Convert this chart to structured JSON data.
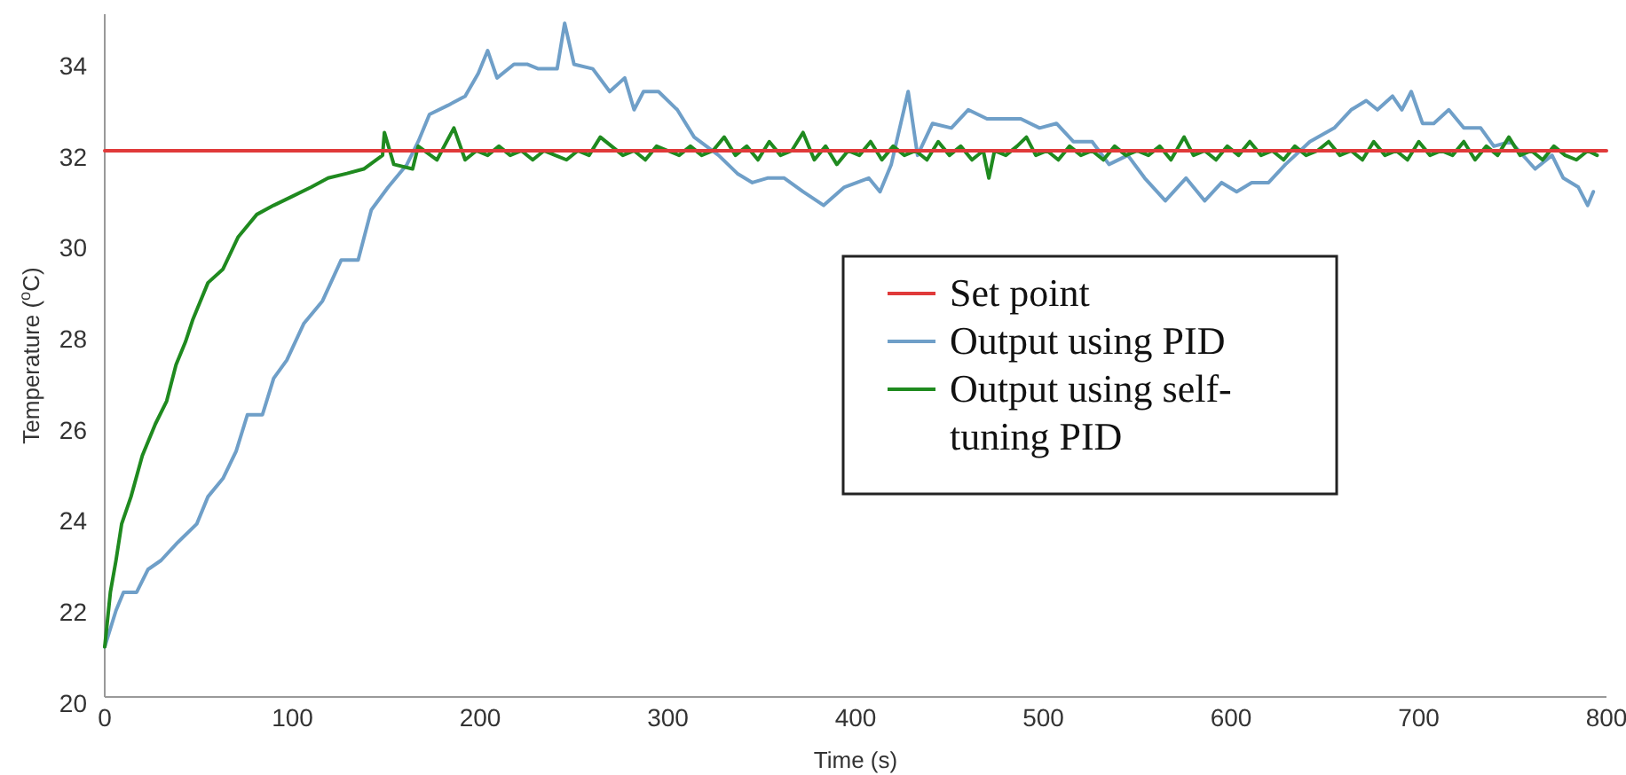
{
  "chart_data": {
    "type": "line",
    "xlabel": "Time (s)",
    "ylabel": "Temperature ($^{o}$C)",
    "xlim": [
      0,
      800
    ],
    "ylim": [
      20,
      35
    ],
    "xticks": [
      0,
      100,
      200,
      300,
      400,
      500,
      600,
      700,
      800
    ],
    "yticks": [
      20,
      22,
      24,
      26,
      28,
      30,
      32,
      34
    ],
    "grid": false,
    "legend": "right",
    "marker": "none",
    "line_style": "solid",
    "series": [
      {
        "name": "Set point",
        "color": "#e03a3a",
        "x": [
          0,
          800
        ],
        "values": [
          32,
          32
        ]
      },
      {
        "name": "Output using PID",
        "color": "#6f9fc8",
        "x": [
          0,
          6,
          10,
          17,
          23,
          30,
          39,
          49,
          55,
          63,
          70,
          76,
          84,
          90,
          97,
          106,
          116,
          126,
          135,
          142,
          151,
          161,
          167,
          173,
          183,
          192,
          199,
          204,
          209,
          218,
          225,
          231,
          241,
          245,
          250,
          260,
          269,
          277,
          282,
          287,
          295,
          305,
          314,
          327,
          337,
          345,
          353,
          362,
          372,
          383,
          394,
          407,
          413,
          419,
          428,
          433,
          441,
          451,
          460,
          470,
          479,
          488,
          498,
          507,
          516,
          526,
          535,
          545,
          554,
          565,
          576,
          586,
          595,
          603,
          611,
          620,
          629,
          642,
          655,
          664,
          672,
          678,
          686,
          691,
          696,
          702,
          708,
          716,
          724,
          733,
          740,
          749,
          762,
          771,
          777,
          785,
          790,
          793
        ],
        "values": [
          21.1,
          21.9,
          22.3,
          22.3,
          22.8,
          23.0,
          23.4,
          23.8,
          24.4,
          24.8,
          25.4,
          26.2,
          26.2,
          27.0,
          27.4,
          28.2,
          28.7,
          29.6,
          29.6,
          30.7,
          31.2,
          31.7,
          32.2,
          32.8,
          33.0,
          33.2,
          33.7,
          34.2,
          33.6,
          33.9,
          33.9,
          33.8,
          33.8,
          34.8,
          33.9,
          33.8,
          33.3,
          33.6,
          32.9,
          33.3,
          33.3,
          32.9,
          32.3,
          31.9,
          31.5,
          31.3,
          31.4,
          31.4,
          31.1,
          30.8,
          31.2,
          31.4,
          31.1,
          31.7,
          33.3,
          31.9,
          32.6,
          32.5,
          32.9,
          32.7,
          32.7,
          32.7,
          32.5,
          32.6,
          32.2,
          32.2,
          31.7,
          31.9,
          31.4,
          30.9,
          31.4,
          30.9,
          31.3,
          31.1,
          31.3,
          31.3,
          31.7,
          32.2,
          32.5,
          32.9,
          33.1,
          32.9,
          33.2,
          32.9,
          33.3,
          32.6,
          32.6,
          32.9,
          32.5,
          32.5,
          32.1,
          32.2,
          31.6,
          31.9,
          31.4,
          31.2,
          30.8,
          31.1
        ]
      },
      {
        "name": "Output using self-tuning PID",
        "color": "#1f8a1f",
        "x": [
          0,
          3,
          6,
          9,
          14,
          20,
          27,
          33,
          38,
          43,
          47,
          55,
          63,
          71,
          81,
          90,
          100,
          110,
          119,
          129,
          138,
          148,
          149,
          154,
          164,
          167,
          177,
          186,
          192,
          198,
          204,
          210,
          216,
          222,
          228,
          234,
          240,
          246,
          252,
          258,
          264,
          270,
          276,
          282,
          288,
          294,
          300,
          306,
          312,
          318,
          324,
          330,
          336,
          342,
          348,
          354,
          360,
          366,
          372,
          378,
          384,
          390,
          396,
          402,
          408,
          414,
          420,
          426,
          432,
          438,
          444,
          450,
          456,
          462,
          468,
          471,
          474,
          480,
          486,
          491,
          496,
          502,
          508,
          514,
          520,
          526,
          532,
          538,
          544,
          550,
          556,
          562,
          568,
          575,
          580,
          586,
          592,
          598,
          604,
          610,
          616,
          622,
          628,
          634,
          640,
          646,
          652,
          658,
          664,
          670,
          676,
          682,
          688,
          694,
          700,
          706,
          712,
          718,
          724,
          730,
          736,
          742,
          748,
          754,
          760,
          766,
          772,
          778,
          784,
          790,
          795
        ],
        "values": [
          21.1,
          22.3,
          23.0,
          23.8,
          24.4,
          25.3,
          26.0,
          26.5,
          27.3,
          27.8,
          28.3,
          29.1,
          29.4,
          30.1,
          30.6,
          30.8,
          31.0,
          31.2,
          31.4,
          31.5,
          31.6,
          31.9,
          32.4,
          31.7,
          31.6,
          32.1,
          31.8,
          32.5,
          31.8,
          32.0,
          31.9,
          32.1,
          31.9,
          32.0,
          31.8,
          32.0,
          31.9,
          31.8,
          32.0,
          31.9,
          32.3,
          32.1,
          31.9,
          32.0,
          31.8,
          32.1,
          32.0,
          31.9,
          32.1,
          31.9,
          32.0,
          32.3,
          31.9,
          32.1,
          31.8,
          32.2,
          31.9,
          32.0,
          32.4,
          31.8,
          32.1,
          31.7,
          32.0,
          31.9,
          32.2,
          31.8,
          32.1,
          31.9,
          32.0,
          31.8,
          32.2,
          31.9,
          32.1,
          31.8,
          32.0,
          31.4,
          32.0,
          31.9,
          32.1,
          32.3,
          31.9,
          32.0,
          31.8,
          32.1,
          31.9,
          32.0,
          31.8,
          32.1,
          31.9,
          32.0,
          31.9,
          32.1,
          31.8,
          32.3,
          31.9,
          32.0,
          31.8,
          32.1,
          31.9,
          32.2,
          31.9,
          32.0,
          31.8,
          32.1,
          31.9,
          32.0,
          32.2,
          31.9,
          32.0,
          31.8,
          32.2,
          31.9,
          32.0,
          31.8,
          32.2,
          31.9,
          32.0,
          31.9,
          32.2,
          31.8,
          32.1,
          31.9,
          32.3,
          31.9,
          32.0,
          31.8,
          32.1,
          31.9,
          31.8,
          32.0,
          31.9
        ]
      }
    ]
  }
}
